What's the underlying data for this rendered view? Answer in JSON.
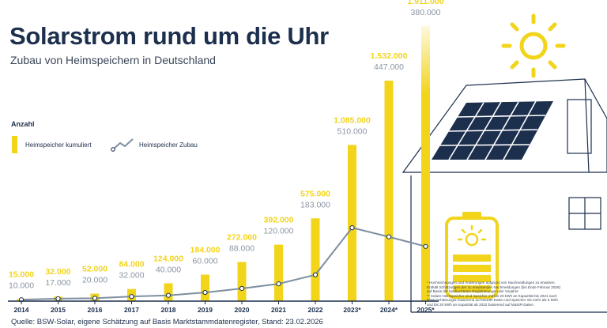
{
  "header": {
    "title": "Solarstrom rund um die Uhr",
    "subtitle": "Zubau von Heimspeichern in Deutschland"
  },
  "legend": {
    "title": "Anzahl",
    "bar_label": "Heimspeicher kumuliert",
    "line_label": "Heimspeicher Zubau"
  },
  "chart_data": {
    "type": "bar",
    "categories": [
      "2014",
      "2015",
      "2016",
      "2017",
      "2018",
      "2019",
      "2020",
      "2021",
      "2022",
      "2023*",
      "2024*",
      "2025*"
    ],
    "series": [
      {
        "name": "Heimspeicher kumuliert",
        "type": "bar",
        "values": [
          15000,
          32000,
          52000,
          84000,
          124000,
          184000,
          272000,
          392000,
          575000,
          1085000,
          1532000,
          1911000
        ],
        "labels": [
          "15.000",
          "32.000",
          "52.000",
          "84.000",
          "124.000",
          "184.000",
          "272.000",
          "392.000",
          "575.000",
          "1.085.000",
          "1.532.000",
          "1.911.000"
        ]
      },
      {
        "name": "Heimspeicher Zubau",
        "type": "line",
        "values": [
          10000,
          17000,
          20000,
          32000,
          40000,
          60000,
          88000,
          120000,
          183000,
          510000,
          447000,
          380000
        ],
        "labels": [
          "10.000",
          "17.000",
          "20.000",
          "32.000",
          "40.000",
          "60.000",
          "88.000",
          "120.000",
          "183.000",
          "510.000",
          "447.000",
          "380.000"
        ]
      }
    ],
    "colors": {
      "bar": "#f2d41a",
      "line": "#7d8fa0",
      "axis": "#1c2f4d",
      "bar_label": "#f2d41a",
      "line_label": "#8a95a3"
    }
  },
  "footnote": {
    "lines": [
      "* Hochrechnungen und Änderungen aufgrund von Nachmeldungen zu erwarten.",
      "Enthält Schätzungen der zu erwartenden Nachmeldungen (bis Ende Februar 2026)",
      "auf Basis der beobachteten Registrierungen der Vorjahre",
      "** Solare Heimspeicher sind Speicher mit bis 20 kWh an Kapazität bis 2021 nach",
      "BSW-Schätzungen basierend auf MaStR-Daten und Speicher mit mehr als 5 kWh",
      "und bis 20 kWh an Kapazität ab 2022 basierend auf MaStR-Daten."
    ]
  },
  "source": "Quelle: BSW-Solar, eigene Schätzung auf Basis Marktstammdatenregister, Stand: 23.02.2026"
}
